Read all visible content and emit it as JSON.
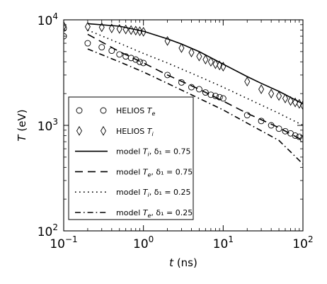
{
  "chart_data": {
    "type": "scatter",
    "xscale": "log",
    "yscale": "log",
    "xlim": [
      0.1,
      100
    ],
    "ylim": [
      100,
      10000
    ],
    "xlabel": {
      "symbol": "t",
      "unit": " (ns)"
    },
    "ylabel": {
      "symbol": "T",
      "unit": " (eV)"
    },
    "xticks": [
      {
        "base": "10",
        "exp": "−1",
        "value": 0.1
      },
      {
        "base": "10",
        "exp": "0",
        "value": 1
      },
      {
        "base": "10",
        "exp": "1",
        "value": 10
      },
      {
        "base": "10",
        "exp": "2",
        "value": 100
      }
    ],
    "yticks": [
      {
        "base": "10",
        "exp": "2",
        "value": 100
      },
      {
        "base": "10",
        "exp": "3",
        "value": 1000
      },
      {
        "base": "10",
        "exp": "4",
        "value": 10000
      }
    ],
    "grid": false,
    "legend_position": "lower-left",
    "series": [
      {
        "name": "HELIOS Te",
        "label": {
          "text": "HELIOS ",
          "sym": "T",
          "sub": "e",
          "rest": ""
        },
        "kind": "marker",
        "marker": "circle",
        "x": [
          0.1,
          0.1,
          0.2,
          0.3,
          0.4,
          0.5,
          0.6,
          0.7,
          0.8,
          0.9,
          1.0,
          2,
          3,
          4,
          5,
          6,
          7,
          8,
          9,
          10,
          20,
          30,
          40,
          50,
          60,
          70,
          80,
          90,
          100
        ],
        "y": [
          7000,
          8300,
          6000,
          5500,
          5100,
          4700,
          4500,
          4350,
          4200,
          4000,
          3900,
          3000,
          2550,
          2300,
          2200,
          2050,
          1950,
          1900,
          1850,
          1800,
          1250,
          1100,
          1000,
          930,
          880,
          840,
          800,
          780,
          740
        ]
      },
      {
        "name": "HELIOS Ti",
        "label": {
          "text": "HELIOS ",
          "sym": "T",
          "sub": "i",
          "rest": ""
        },
        "kind": "marker",
        "marker": "diamond",
        "x": [
          0.1,
          0.2,
          0.3,
          0.4,
          0.5,
          0.6,
          0.7,
          0.8,
          0.9,
          1.0,
          2,
          3,
          4,
          5,
          6,
          7,
          8,
          9,
          10,
          20,
          30,
          40,
          50,
          60,
          70,
          80,
          90,
          100
        ],
        "y": [
          8700,
          8600,
          8500,
          8300,
          8200,
          8100,
          8000,
          7900,
          7800,
          7700,
          6300,
          5400,
          4900,
          4500,
          4200,
          4000,
          3800,
          3700,
          3600,
          2600,
          2200,
          2000,
          1900,
          1800,
          1700,
          1650,
          1600,
          1550
        ]
      },
      {
        "name": "model Ti, δ1 = 0.75",
        "label": {
          "text": "model ",
          "sym": "T",
          "sub": "i",
          "rest": ", δ₁ = 0.75"
        },
        "kind": "line",
        "dash": "",
        "x": [
          0.2,
          0.5,
          1,
          2,
          3,
          5,
          10,
          20,
          30,
          50,
          100
        ],
        "y": [
          9200,
          8700,
          7800,
          6600,
          5900,
          5000,
          3800,
          2900,
          2500,
          2100,
          1600
        ]
      },
      {
        "name": "model Te, δ1 = 0.75",
        "label": {
          "text": "model ",
          "sym": "T",
          "sub": "e",
          "rest": ", δ₁ = 0.75"
        },
        "kind": "line",
        "dash": "11,7",
        "x": [
          0.2,
          0.5,
          1,
          2,
          5,
          10,
          20,
          50,
          100
        ],
        "y": [
          7300,
          5000,
          3900,
          3000,
          2200,
          1700,
          1300,
          950,
          720
        ]
      },
      {
        "name": "model Ti, δ1 = 0.25",
        "label": {
          "text": "model ",
          "sym": "T",
          "sub": "i",
          "rest": ", δ₁ = 0.25"
        },
        "kind": "line",
        "dash": "1.6,4.4",
        "x": [
          0.2,
          0.5,
          1,
          2,
          5,
          10,
          20,
          50,
          100
        ],
        "y": [
          8000,
          6000,
          4800,
          3900,
          2900,
          2300,
          1800,
          1300,
          1000
        ]
      },
      {
        "name": "model Te, δ1 = 0.25",
        "label": {
          "text": "model ",
          "sym": "T",
          "sub": "e",
          "rest": ", δ₁ = 0.25"
        },
        "kind": "line",
        "dash": "8,4,1.6,4",
        "x": [
          0.2,
          0.5,
          1,
          2,
          5,
          10,
          20,
          50,
          100
        ],
        "y": [
          5300,
          4000,
          3200,
          2500,
          1800,
          1400,
          1050,
          720,
          430
        ]
      }
    ]
  }
}
